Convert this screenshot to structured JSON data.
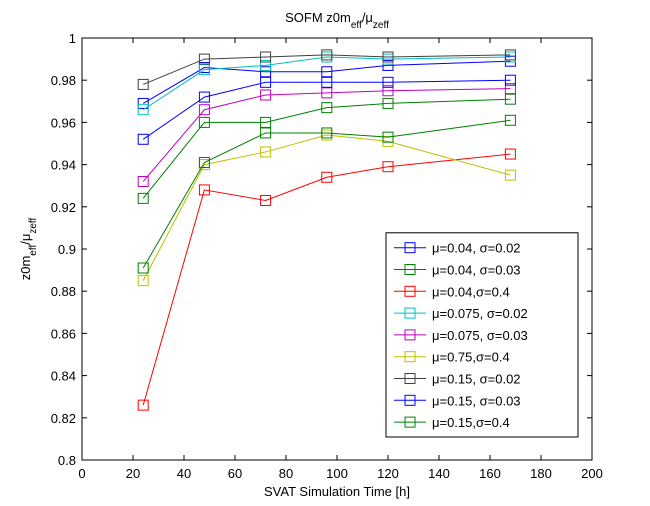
{
  "chart_data": {
    "type": "line",
    "title": [
      "SOFM z0m",
      "eff",
      "/μ",
      "zeff"
    ],
    "xlabel": "SVAT Simulation Time [h]",
    "ylabel": [
      "z0m",
      "eff",
      "/μ",
      "zeff"
    ],
    "x": [
      24,
      48,
      72,
      96,
      120,
      168
    ],
    "xlim": [
      0,
      200
    ],
    "xticks": [
      0,
      20,
      40,
      60,
      80,
      100,
      120,
      140,
      160,
      180,
      200
    ],
    "ylim": [
      0.8,
      1
    ],
    "yticks": [
      0.8,
      0.82,
      0.84,
      0.86,
      0.88,
      0.9,
      0.92,
      0.94,
      0.96,
      0.98,
      1
    ],
    "legend": "lower right",
    "series": [
      {
        "name": "μ=0.04, σ=0.02",
        "color": "#0000ff",
        "values": [
          0.969,
          0.986,
          0.984,
          0.984,
          0.987,
          0.989
        ]
      },
      {
        "name": "μ=0.04, σ=0.03",
        "color": "#008000",
        "values": [
          0.924,
          0.96,
          0.96,
          0.967,
          0.969,
          0.971
        ]
      },
      {
        "name": "μ=0.04,σ=0.4",
        "color": "#ff0000",
        "values": [
          0.826,
          0.928,
          0.923,
          0.934,
          0.939,
          0.945
        ]
      },
      {
        "name": "μ=0.075, σ=0.02",
        "color": "#00bfbf",
        "values": [
          0.966,
          0.985,
          0.987,
          0.991,
          0.99,
          0.991
        ]
      },
      {
        "name": "μ=0.075, σ=0.03",
        "color": "#bf00bf",
        "values": [
          0.932,
          0.966,
          0.973,
          0.974,
          0.975,
          0.976
        ]
      },
      {
        "name": "μ=0.75,σ=0.4",
        "color": "#bfbf00",
        "values": [
          0.885,
          0.94,
          0.946,
          0.954,
          0.951,
          0.935
        ]
      },
      {
        "name": "μ=0.15, σ=0.02",
        "color": "#404040",
        "values": [
          0.978,
          0.99,
          0.991,
          0.992,
          0.991,
          0.992
        ]
      },
      {
        "name": "μ=0.15, σ=0.03",
        "color": "#0000ff",
        "values": [
          0.952,
          0.972,
          0.979,
          0.979,
          0.979,
          0.98
        ]
      },
      {
        "name": "μ=0.15,σ=0.4",
        "color": "#008000",
        "values": [
          0.891,
          0.941,
          0.955,
          0.955,
          0.953,
          0.961
        ]
      }
    ]
  }
}
